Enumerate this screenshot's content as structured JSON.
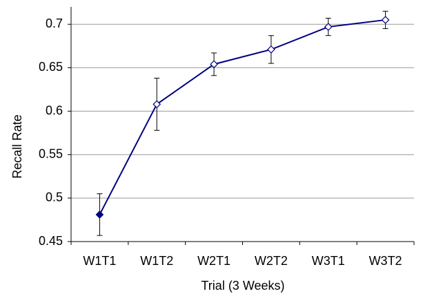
{
  "chart_data": {
    "type": "line",
    "x_label": "Trial (3 Weeks)",
    "y_label": "Recall Rate",
    "categories": [
      "W1T1",
      "W1T2",
      "W2T1",
      "W2T2",
      "W3T1",
      "W3T2"
    ],
    "series": [
      {
        "color": "#000080",
        "values": [
          0.481,
          0.608,
          0.654,
          0.671,
          0.697,
          0.705
        ],
        "errors": [
          0.024,
          0.03,
          0.013,
          0.016,
          0.01,
          0.01
        ],
        "marker_fills": [
          "#000080",
          "#ffffff",
          "#ffffff",
          "#ffffff",
          "#ffffff",
          "#ffffff"
        ]
      }
    ],
    "ylim": [
      0.45,
      0.72
    ],
    "yticks": [
      0.45,
      0.5,
      0.55,
      0.6,
      0.65,
      0.7
    ],
    "grid": true
  }
}
